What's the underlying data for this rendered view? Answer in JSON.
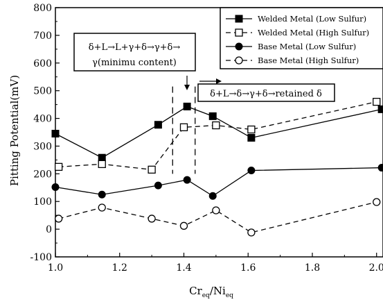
{
  "chart_data": {
    "type": "line",
    "xlabel_main": "Cr",
    "xlabel_sub1": "eq",
    "xlabel_mid": "/Ni",
    "xlabel_sub2": "eq",
    "ylabel": "Pitting Potential(mV)",
    "xlim": [
      1.0,
      2.02
    ],
    "ylim": [
      -100,
      800
    ],
    "xticks": [
      "1.0",
      "1.2",
      "1.4",
      "1.6",
      "1.8",
      "2.0"
    ],
    "xtick_values": [
      1.0,
      1.2,
      1.4,
      1.6,
      1.8,
      2.0
    ],
    "yticks": [
      "-100",
      "0",
      "100",
      "200",
      "300",
      "400",
      "500",
      "600",
      "700",
      "800"
    ],
    "ytick_values": [
      -100,
      0,
      100,
      200,
      300,
      400,
      500,
      600,
      700,
      800
    ],
    "legend_position": "top-right",
    "series": [
      {
        "name": "Welded Metal (Low Sulfur)",
        "marker": "filled-square",
        "line": "solid",
        "x": [
          1.0,
          1.145,
          1.32,
          1.41,
          1.49,
          1.61,
          2.02
        ],
        "y": [
          345,
          258,
          377,
          443,
          408,
          330,
          433
        ]
      },
      {
        "name": "Welded Metal (High Sulfur)",
        "marker": "open-square",
        "line": "dashed",
        "x": [
          1.01,
          1.145,
          1.3,
          1.4,
          1.5,
          1.61,
          2.0
        ],
        "y": [
          225,
          235,
          215,
          368,
          375,
          360,
          460
        ]
      },
      {
        "name": "Base Metal (Low Sulfur)",
        "marker": "filled-circle",
        "line": "solid",
        "x": [
          1.0,
          1.145,
          1.32,
          1.41,
          1.49,
          1.61,
          2.02
        ],
        "y": [
          152,
          125,
          158,
          178,
          120,
          212,
          222
        ]
      },
      {
        "name": "Base Metal (High Sulfur)",
        "marker": "open-circle",
        "line": "dashed",
        "x": [
          1.01,
          1.145,
          1.3,
          1.4,
          1.5,
          1.61,
          2.0
        ],
        "y": [
          38,
          78,
          38,
          12,
          68,
          -12,
          98
        ]
      }
    ],
    "annotations": {
      "box1_line1": "δ+L→L+γ+δ→γ+δ→",
      "box1_line2": "γ(minimu content)",
      "box2": "δ+L→δ→γ+δ→retained δ",
      "vline_x": [
        1.365,
        1.435
      ]
    }
  }
}
